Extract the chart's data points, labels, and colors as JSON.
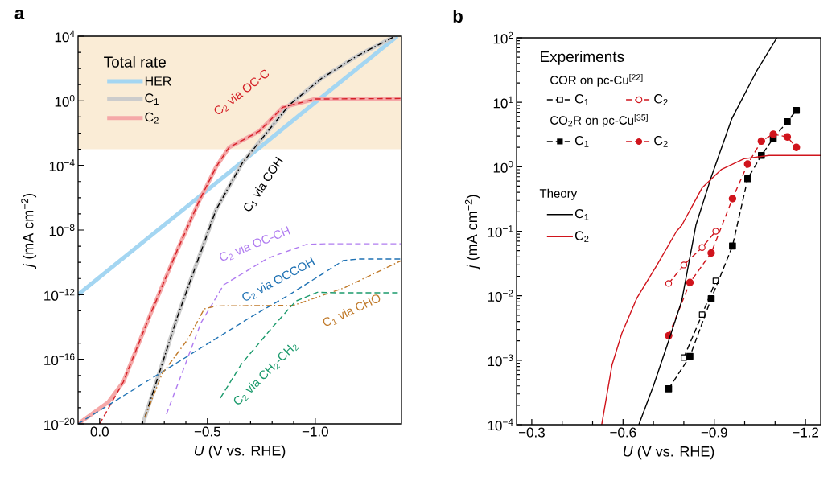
{
  "chart_data": [
    {
      "type": "line",
      "title": "a",
      "xlabel": "*U* (V vs. RHE)",
      "ylabel": "*j* (mA cm$^{−2}$)",
      "legend_title": "Total rate",
      "legend": "top left",
      "log": "y",
      "xlim": [
        0.1,
        -1.4
      ],
      "xticks": [
        {
          "value": 0,
          "label": "0.0"
        },
        {
          "value": -0.5,
          "label": "−0.5"
        },
        {
          "value": -1.0,
          "label": "−1.0"
        }
      ],
      "ylim": [
        1e-20,
        10000
      ],
      "yticks": [
        {
          "value": 1e-20,
          "label": "10$^{−20}$"
        },
        {
          "value": 1e-16,
          "label": "10$^{−16}$"
        },
        {
          "value": 1e-12,
          "label": "10$^{−12}$"
        },
        {
          "value": 1e-08,
          "label": "10$^{−8}$"
        },
        {
          "value": 0.0001,
          "label": "10$^{−4}$"
        },
        {
          "value": 1,
          "label": "10$^{0}$"
        },
        {
          "value": 10000,
          "label": "10$^{4}$"
        }
      ],
      "bands": [
        {
          "axis": "y",
          "from": 0.001,
          "to": 10000,
          "color": "#faecd6"
        }
      ],
      "series": [
        {
          "name": "HER",
          "color": "#a4d6f2",
          "line_style": "solid",
          "x": [
            0.1,
            -0.5,
            -1.0,
            -1.38
          ],
          "values": [
            1e-12,
            3e-06,
            0.8,
            10000
          ]
        },
        {
          "name": "C$_{1}$",
          "color": "#cccccc",
          "line_style": "solid",
          "x": [
            -0.2,
            -0.36,
            -0.54,
            -0.66,
            -0.78,
            -0.88,
            -1.03,
            -1.19,
            -1.37
          ],
          "values": [
            1e-20,
            4e-14,
            1.8e-07,
            0.00013,
            0.013,
            0.56,
            25,
            560,
            10000
          ]
        },
        {
          "name": "C$_{2}$",
          "color": "#f5a8a8",
          "line_style": "solid",
          "x": [
            0.1,
            -0.04,
            -0.11,
            -0.23,
            -0.36,
            -0.46,
            -0.54,
            -0.6,
            -0.74,
            -0.85,
            -1.0,
            -1.4
          ],
          "values": [
            1e-20,
            2.2e-19,
            4e-18,
            4e-14,
            5.6e-10,
            5.6e-07,
            8e-05,
            0.0013,
            0.013,
            0.4,
            1.3,
            1.4
          ]
        },
        {
          "name": "C$_{2}$ via OC-C",
          "color": "#d42027",
          "line_style": "dashed",
          "x": [
            0.0,
            -0.11,
            -0.23,
            -0.36,
            -0.46,
            -0.54,
            -0.6,
            -0.74,
            -0.85,
            -1.0,
            -1.4
          ],
          "values": [
            1e-20,
            4e-18,
            4e-14,
            5.6e-10,
            5.6e-07,
            8e-05,
            0.0013,
            0.013,
            0.4,
            1.3,
            1.4
          ]
        },
        {
          "name": "C$_{1}$ via COH",
          "color": "#000000",
          "line_style": "dashdot",
          "x": [
            -0.21,
            -0.36,
            -0.54,
            -0.66,
            -0.78,
            -0.88,
            -1.03,
            -1.19,
            -1.37
          ],
          "values": [
            2.5e-20,
            4e-14,
            1.8e-07,
            0.00013,
            0.013,
            0.56,
            25,
            560,
            10000
          ]
        },
        {
          "name": "C$_{2}$ via OC-CH",
          "color": "#b07cf0",
          "line_style": "dashed",
          "x": [
            -0.31,
            -0.47,
            -0.575,
            -0.78,
            -0.96,
            -1.05,
            -1.4
          ],
          "values": [
            4e-20,
            1.8e-14,
            4e-12,
            1.8e-10,
            1.3e-09,
            1.4e-09,
            1.4e-09
          ]
        },
        {
          "name": "C$_{2}$ via OCCOH",
          "color": "#1f72b4",
          "line_style": "dashed",
          "x": [
            0.1,
            -0.7,
            -0.88,
            -1.03,
            -1.13,
            -1.2,
            -1.4
          ],
          "values": [
            1e-20,
            4e-14,
            1e-12,
            1.8e-11,
            1.3e-10,
            1.6e-10,
            1.6e-10
          ]
        },
        {
          "name": "C$_{1}$ via CHO",
          "color": "#c07a2a",
          "line_style": "dashdot",
          "x": [
            -0.21,
            -0.29,
            -0.41,
            -0.485,
            -0.54,
            -0.9,
            -1.13,
            -1.4
          ],
          "values": [
            2.5e-20,
            1.3e-17,
            1.8e-15,
            1.3e-13,
            2e-13,
            2.2e-13,
            2.5e-12,
            1.3e-10
          ]
        },
        {
          "name": "C$_{2}$ via CH$_{2}$-CH$_{2}$",
          "color": "#1b9a6c",
          "line_style": "dashed",
          "x": [
            -0.56,
            -0.66,
            -0.81,
            -0.91,
            -1.01,
            -1.1,
            -1.4
          ],
          "values": [
            4e-19,
            5.6e-17,
            1.3e-14,
            4e-13,
            1.4e-12,
            1.3e-12,
            1.3e-12
          ]
        }
      ]
    },
    {
      "type": "line",
      "title": "b",
      "xlabel": "*U* (V vs. RHE)",
      "ylabel": "*j* (mA cm$^{−2}$)",
      "legend_title": "Experiments",
      "legend": "top left",
      "log": "y",
      "annotations": [
        "COR on pc-Cu$^{[22]}$",
        "CO$_{2}$R on pc-Cu$^{[35]}$",
        "Theory"
      ],
      "xlim": [
        -0.25,
        -1.25
      ],
      "xticks": [
        {
          "value": -0.3,
          "label": "−0.3"
        },
        {
          "value": -0.6,
          "label": "−0.6"
        },
        {
          "value": -0.9,
          "label": "−0.9"
        },
        {
          "value": -1.2,
          "label": "−1.2"
        }
      ],
      "ylim": [
        0.0001,
        100
      ],
      "yticks": [
        {
          "value": 0.0001,
          "label": "10$^{−4}$"
        },
        {
          "value": 0.001,
          "label": "10$^{−3}$"
        },
        {
          "value": 0.01,
          "label": "10$^{−2}$"
        },
        {
          "value": 0.1,
          "label": "10$^{−1}$"
        },
        {
          "value": 1,
          "label": "10$^{0}$"
        },
        {
          "value": 10,
          "label": "10$^{1}$"
        },
        {
          "value": 100,
          "label": "10$^{2}$"
        }
      ],
      "series": [
        {
          "name": "C$_{1}$",
          "color": "#000000",
          "line_style": "dashed",
          "marker": "square",
          "x": [
            -0.8,
            -0.86,
            -0.905
          ],
          "values": [
            0.0011,
            0.0051,
            0.017
          ]
        },
        {
          "name": "C$_{2}$",
          "color": "#d0141c",
          "line_style": "dashed",
          "marker": "circle",
          "x": [
            -0.75,
            -0.8,
            -0.86,
            -0.905
          ],
          "values": [
            0.0155,
            0.03,
            0.056,
            0.1
          ]
        },
        {
          "name": "C$_{1}$",
          "color": "#000000",
          "line_style": "dashed",
          "marker": "square",
          "x": [
            -0.75,
            -0.82,
            -0.89,
            -0.96,
            -1.01,
            -1.055,
            -1.094,
            -1.14,
            -1.17
          ],
          "values": [
            0.00036,
            0.00115,
            0.009,
            0.059,
            0.65,
            1.5,
            2.75,
            5,
            7.5
          ]
        },
        {
          "name": "C$_{2}$",
          "color": "#d0141c",
          "line_style": "dashed",
          "marker": "circle",
          "x": [
            -0.75,
            -0.82,
            -0.89,
            -0.96,
            -1.01,
            -1.055,
            -1.094,
            -1.14,
            -1.17
          ],
          "values": [
            0.0024,
            0.016,
            0.046,
            0.32,
            1.1,
            2.5,
            3.2,
            2.9,
            2.0
          ]
        },
        {
          "name": "C$_{1}$",
          "color": "#000000",
          "line_style": "solid",
          "x": [
            -0.652,
            -0.7,
            -0.75,
            -0.793,
            -0.84,
            -0.89,
            -0.958,
            -1.04,
            -1.106
          ],
          "values": [
            0.0001,
            0.0004,
            0.002,
            0.0083,
            0.126,
            0.69,
            5.6,
            31,
            100
          ]
        },
        {
          "name": "C$_{2}$",
          "color": "#d0141c",
          "line_style": "solid",
          "x": [
            -0.53,
            -0.564,
            -0.596,
            -0.645,
            -0.71,
            -0.776,
            -0.793,
            -0.86,
            -0.924,
            -0.998,
            -1.08,
            -1.25
          ],
          "values": [
            0.0001,
            0.00085,
            0.0026,
            0.0091,
            0.029,
            0.1,
            0.123,
            0.47,
            0.91,
            1.33,
            1.5,
            1.5
          ]
        }
      ]
    }
  ]
}
